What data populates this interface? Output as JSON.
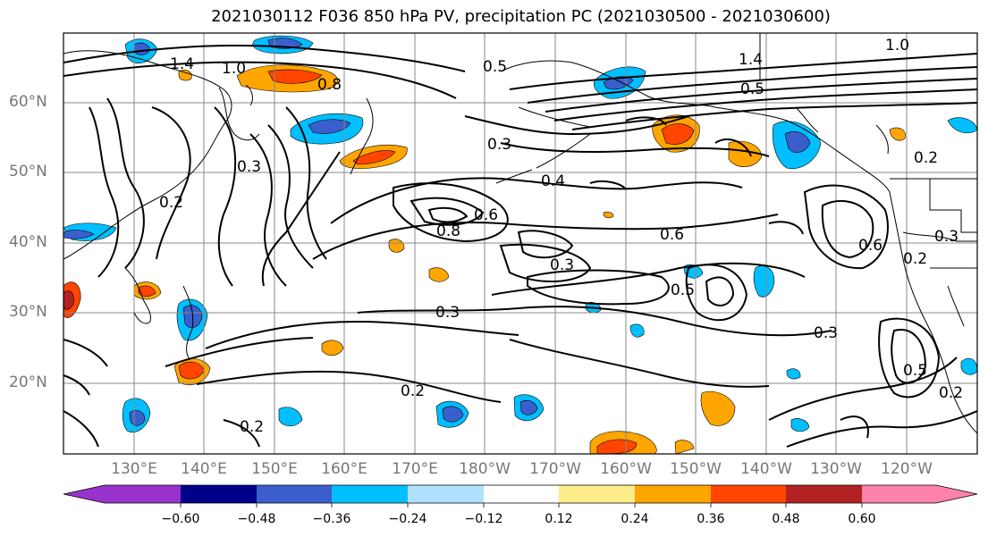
{
  "title": "2021030112 F036 850 hPa PV, precipitation PC (2021030500 - 2021030600)",
  "lat_labels": [
    "60°N",
    "50°N",
    "40°N",
    "30°N",
    "20°N"
  ],
  "lon_labels": [
    "130°E",
    "140°E",
    "150°E",
    "160°E",
    "170°E",
    "180°W",
    "170°W",
    "160°W",
    "150°W",
    "140°W",
    "130°W",
    "120°W"
  ],
  "colorbar": {
    "colors": [
      "#9932cc",
      "#00008b",
      "#3a5fcd",
      "#00bfff",
      "#b0e2ff",
      "#ffffff",
      "#ffec8b",
      "#ffa500",
      "#ff4500",
      "#b22222",
      "#ff82ab"
    ],
    "tick_labels": [
      "−0.60",
      "−0.48",
      "−0.36",
      "−0.24",
      "−0.12",
      "0.12",
      "0.24",
      "0.36",
      "0.48",
      "0.60"
    ]
  },
  "contour_labels": [
    {
      "text": "1.4"
    },
    {
      "text": "1.0"
    },
    {
      "text": "0.8"
    },
    {
      "text": "0.5"
    },
    {
      "text": "0.3"
    },
    {
      "text": "0.2"
    },
    {
      "text": "0.4"
    },
    {
      "text": "0.6"
    },
    {
      "text": "0.8"
    },
    {
      "text": "0.3"
    },
    {
      "text": "0.3"
    },
    {
      "text": "0.6"
    },
    {
      "text": "0.3"
    },
    {
      "text": "0.2"
    },
    {
      "text": "0.2"
    },
    {
      "text": "0.2"
    },
    {
      "text": "0.3"
    },
    {
      "text": "0.5"
    },
    {
      "text": "1.4"
    },
    {
      "text": "0.5"
    },
    {
      "text": "1.0"
    },
    {
      "text": "0.2"
    },
    {
      "text": "0.6"
    },
    {
      "text": "0.3"
    },
    {
      "text": "0.5"
    },
    {
      "text": "0.2"
    }
  ]
}
